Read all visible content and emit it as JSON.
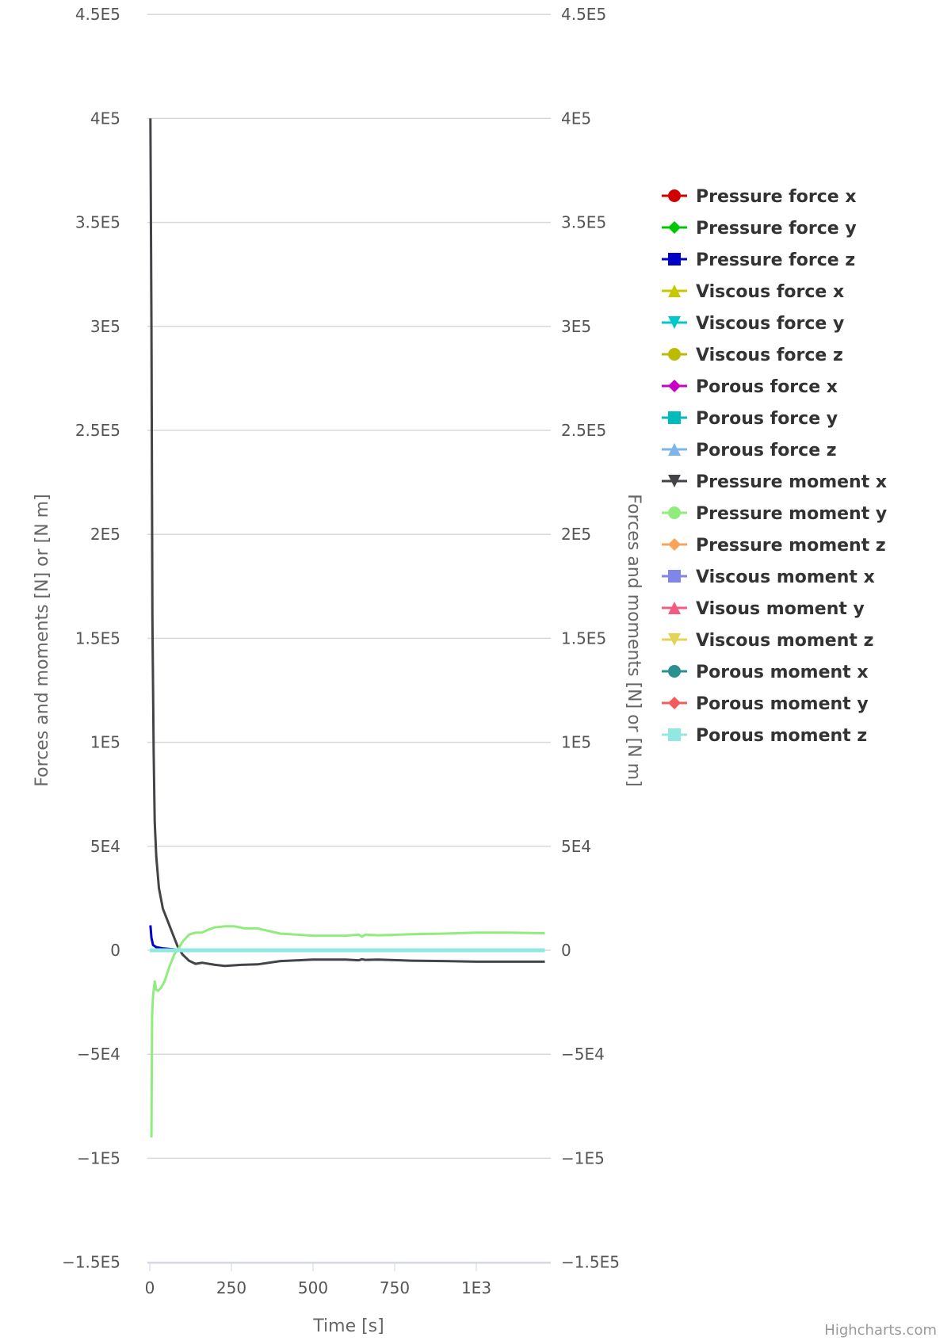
{
  "credits": "Highcharts.com",
  "chart_data": {
    "type": "line",
    "title": "",
    "xlabel": "Time [s]",
    "ylabel": "Forces and moments [N] or [N m]",
    "ylabel_right": "Forces and moments [N] or [N m]",
    "xlim": [
      0,
      1215
    ],
    "ylim": [
      -150000,
      450000
    ],
    "x_ticks": [
      0,
      250,
      500,
      750,
      1000
    ],
    "x_tick_labels": [
      "0",
      "250",
      "500",
      "750",
      "1E3"
    ],
    "y_ticks": [
      450000,
      400000,
      350000,
      300000,
      250000,
      200000,
      150000,
      100000,
      50000,
      0,
      -50000,
      -100000,
      -150000
    ],
    "y_tick_labels": [
      "4.5E5",
      "4E5",
      "3.5E5",
      "3E5",
      "2.5E5",
      "2E5",
      "1.5E5",
      "1E5",
      "5E4",
      "0",
      "−5E4",
      "−1E5",
      "−1.5E5"
    ],
    "grid": true,
    "legend_position": "right",
    "series": [
      {
        "name": "Pressure force x",
        "color": "#d00000",
        "symbol": "circle",
        "x": [
          0,
          1210
        ],
        "y": [
          0,
          0
        ]
      },
      {
        "name": "Pressure force y",
        "color": "#00c800",
        "symbol": "diamond",
        "x": [
          0,
          1210
        ],
        "y": [
          0,
          0
        ]
      },
      {
        "name": "Pressure force z",
        "color": "#0000c8",
        "symbol": "square",
        "x": [
          2,
          5,
          10,
          20,
          40,
          80,
          150,
          1210
        ],
        "y": [
          12000,
          6000,
          2500,
          1500,
          900,
          400,
          0,
          0
        ]
      },
      {
        "name": "Viscous force x",
        "color": "#c8c800",
        "symbol": "triangle",
        "x": [
          0,
          1210
        ],
        "y": [
          0,
          0
        ]
      },
      {
        "name": "Viscous force y",
        "color": "#00c8c8",
        "symbol": "triangle-down",
        "x": [
          0,
          1210
        ],
        "y": [
          0,
          0
        ]
      },
      {
        "name": "Viscous force z",
        "color": "#bbbb00",
        "symbol": "circle",
        "x": [
          0,
          1210
        ],
        "y": [
          0,
          0
        ]
      },
      {
        "name": "Porous force x",
        "color": "#c800c8",
        "symbol": "diamond",
        "x": [
          0,
          1210
        ],
        "y": [
          0,
          0
        ]
      },
      {
        "name": "Porous force y",
        "color": "#00bbbb",
        "symbol": "square",
        "x": [
          0,
          1210
        ],
        "y": [
          0,
          0
        ]
      },
      {
        "name": "Porous force z",
        "color": "#7cb5ec",
        "symbol": "triangle",
        "x": [
          0,
          1210
        ],
        "y": [
          0,
          0
        ]
      },
      {
        "name": "Pressure moment x",
        "color": "#434348",
        "symbol": "triangle-down",
        "x": [
          2,
          5,
          8,
          12,
          15,
          20,
          28,
          40,
          55,
          70,
          85,
          100,
          120,
          140,
          160,
          200,
          230,
          280,
          330,
          400,
          500,
          600,
          640,
          650,
          660,
          700,
          800,
          900,
          1000,
          1100,
          1210
        ],
        "y": [
          400000,
          300000,
          160000,
          95000,
          62000,
          45000,
          30000,
          20000,
          14000,
          8000,
          2000,
          -2000,
          -5000,
          -6500,
          -6000,
          -7000,
          -7500,
          -7000,
          -6800,
          -5200,
          -4500,
          -4500,
          -4800,
          -4300,
          -4600,
          -4500,
          -5000,
          -5200,
          -5500,
          -5500,
          -5500
        ]
      },
      {
        "name": "Pressure moment y",
        "color": "#90ed7d",
        "symbol": "circle",
        "x": [
          5,
          7,
          10,
          15,
          20,
          25,
          35,
          45,
          60,
          75,
          85,
          100,
          120,
          140,
          160,
          180,
          200,
          230,
          260,
          290,
          330,
          400,
          500,
          600,
          640,
          650,
          660,
          700,
          800,
          900,
          1000,
          1100,
          1210
        ],
        "y": [
          -90000,
          -32000,
          -22000,
          -15000,
          -19000,
          -19500,
          -18000,
          -15000,
          -8000,
          -2000,
          0,
          4000,
          7500,
          8500,
          8500,
          10000,
          11000,
          11500,
          11500,
          10500,
          10500,
          8000,
          7000,
          7000,
          7500,
          6500,
          7500,
          7200,
          7700,
          8000,
          8500,
          8500,
          8200
        ]
      },
      {
        "name": "Pressure moment z",
        "color": "#f7a35c",
        "symbol": "diamond",
        "x": [
          0,
          1210
        ],
        "y": [
          0,
          0
        ]
      },
      {
        "name": "Viscous moment x",
        "color": "#8085e9",
        "symbol": "square",
        "x": [
          0,
          1210
        ],
        "y": [
          0,
          0
        ]
      },
      {
        "name": "Visous moment y",
        "color": "#f15c80",
        "symbol": "triangle",
        "x": [
          0,
          1210
        ],
        "y": [
          0,
          0
        ]
      },
      {
        "name": "Viscous moment z",
        "color": "#e4d354",
        "symbol": "triangle-down",
        "x": [
          0,
          1210
        ],
        "y": [
          0,
          0
        ]
      },
      {
        "name": "Porous moment x",
        "color": "#2b908f",
        "symbol": "circle",
        "x": [
          0,
          1210
        ],
        "y": [
          0,
          0
        ]
      },
      {
        "name": "Porous moment y",
        "color": "#f45b5b",
        "symbol": "diamond",
        "x": [
          0,
          1210
        ],
        "y": [
          0,
          0
        ]
      },
      {
        "name": "Porous moment z",
        "color": "#91e8e1",
        "symbol": "square",
        "x": [
          0,
          1210
        ],
        "y": [
          0,
          0
        ]
      }
    ]
  }
}
